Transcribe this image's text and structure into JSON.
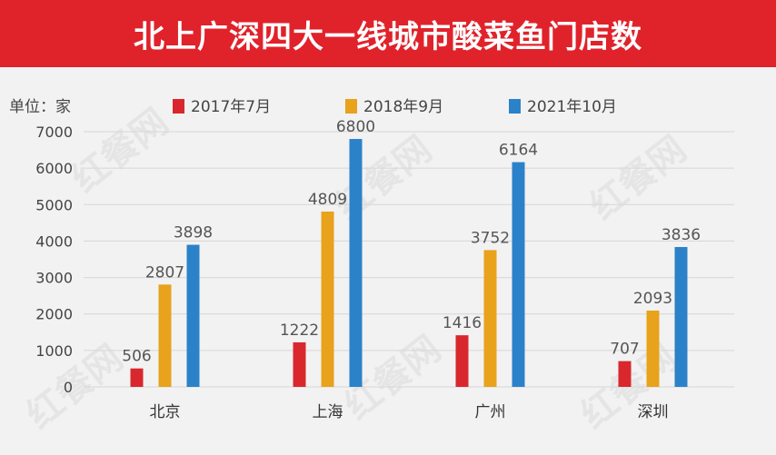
{
  "header": {
    "title": "北上广深四大一线城市酸菜鱼门店数"
  },
  "unit_label": "单位：家",
  "watermark": "红餐网",
  "chart_data": {
    "type": "bar",
    "title": "北上广深四大一线城市酸菜鱼门店数",
    "xlabel": "",
    "ylabel": "",
    "ylim": [
      0,
      7000
    ],
    "yticks": [
      0,
      1000,
      2000,
      3000,
      4000,
      5000,
      6000,
      7000
    ],
    "grid": true,
    "legend_position": "top",
    "categories": [
      "北京",
      "上海",
      "广州",
      "深圳"
    ],
    "series": [
      {
        "name": "2017年7月",
        "color": "#d9272e",
        "values": [
          506,
          1222,
          1416,
          707
        ],
        "labels": [
          "506",
          "1222",
          "1416",
          "707"
        ]
      },
      {
        "name": "2018年9月",
        "color": "#e8a21c",
        "values": [
          2807,
          4809,
          3752,
          2093
        ],
        "labels": [
          "2807",
          "4809",
          "3752",
          "2093"
        ]
      },
      {
        "name": "2021年10月",
        "color": "#2b82c9",
        "values": [
          3898,
          6800,
          6164,
          3836
        ],
        "labels": [
          "3898",
          "6800",
          "6164",
          "3836"
        ]
      }
    ]
  }
}
